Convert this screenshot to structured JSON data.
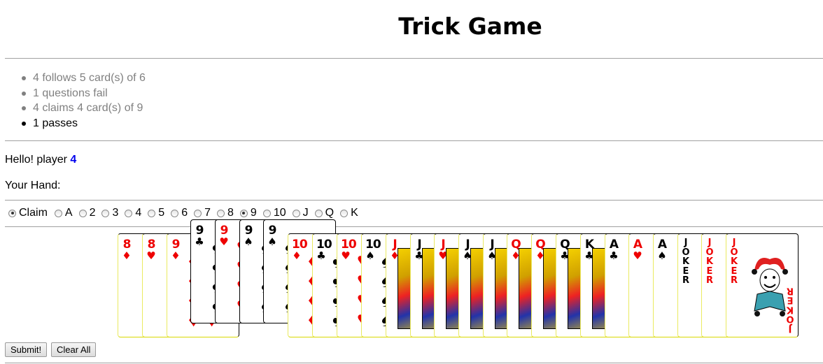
{
  "title": "Trick Game",
  "log": [
    "4 follows 5 card(s) of 6",
    "1 questions fail",
    "4 claims 4 card(s) of 9",
    "1 passes"
  ],
  "greeting": {
    "prefix": "Hello! player ",
    "player": "4"
  },
  "hand_label": "Your Hand:",
  "claim_options": [
    "Claim",
    "A",
    "2",
    "3",
    "4",
    "5",
    "6",
    "7",
    "8",
    "9",
    "10",
    "J",
    "Q",
    "K"
  ],
  "claim_selected": [
    "Claim",
    "9"
  ],
  "cards": [
    {
      "rank": "8",
      "suit": "♦",
      "color": "red",
      "selected": false
    },
    {
      "rank": "8",
      "suit": "♥",
      "color": "red",
      "selected": false
    },
    {
      "rank": "9",
      "suit": "♦",
      "color": "red",
      "selected": false
    },
    {
      "rank": "9",
      "suit": "♣",
      "color": "black",
      "selected": true
    },
    {
      "rank": "9",
      "suit": "♥",
      "color": "red",
      "selected": true
    },
    {
      "rank": "9",
      "suit": "♠",
      "color": "black",
      "selected": true
    },
    {
      "rank": "9",
      "suit": "♠",
      "color": "black",
      "selected": true
    },
    {
      "rank": "10",
      "suit": "♦",
      "color": "red",
      "selected": false
    },
    {
      "rank": "10",
      "suit": "♣",
      "color": "black",
      "selected": false
    },
    {
      "rank": "10",
      "suit": "♥",
      "color": "red",
      "selected": false
    },
    {
      "rank": "10",
      "suit": "♠",
      "color": "black",
      "selected": false
    },
    {
      "rank": "J",
      "suit": "♦",
      "color": "red",
      "selected": false
    },
    {
      "rank": "J",
      "suit": "♣",
      "color": "black",
      "selected": false
    },
    {
      "rank": "J",
      "suit": "♥",
      "color": "red",
      "selected": false
    },
    {
      "rank": "J",
      "suit": "♠",
      "color": "black",
      "selected": false
    },
    {
      "rank": "J",
      "suit": "♠",
      "color": "black",
      "selected": false
    },
    {
      "rank": "Q",
      "suit": "♦",
      "color": "red",
      "selected": false
    },
    {
      "rank": "Q",
      "suit": "♦",
      "color": "red",
      "selected": false
    },
    {
      "rank": "Q",
      "suit": "♣",
      "color": "black",
      "selected": false
    },
    {
      "rank": "K",
      "suit": "♣",
      "color": "black",
      "selected": false
    },
    {
      "rank": "A",
      "suit": "♣",
      "color": "black",
      "selected": false
    },
    {
      "rank": "A",
      "suit": "♥",
      "color": "red",
      "selected": false
    },
    {
      "rank": "A",
      "suit": "♠",
      "color": "black",
      "selected": false
    },
    {
      "rank": "JOKER",
      "suit": "",
      "color": "black",
      "selected": false
    },
    {
      "rank": "JOKER",
      "suit": "",
      "color": "red",
      "selected": false
    },
    {
      "rank": "JOKER",
      "suit": "",
      "color": "red",
      "selected": false
    }
  ],
  "buttons": {
    "submit": "Submit!",
    "clear": "Clear All"
  },
  "colors": {
    "player": "#0000ee",
    "red": "#ee0000",
    "muted": "#808080"
  },
  "icons": {
    "joker_art": "jester-icon",
    "face_art": "court-figure-icon"
  }
}
